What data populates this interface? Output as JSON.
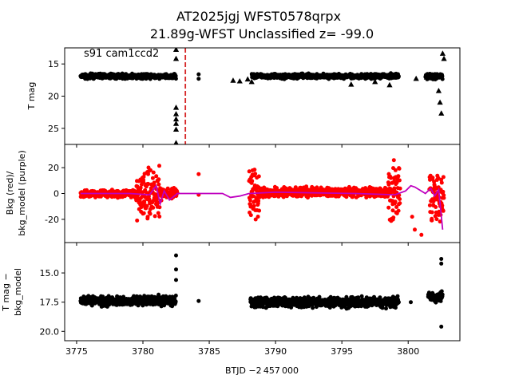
{
  "figure": {
    "title_line1": "AT2025jgj  WFST0578qrpx",
    "title_line2": "21.89g-WFST Unclassified z= -99.0",
    "xlabel": "BTJD −2 457 000"
  },
  "chart_data": [
    {
      "type": "scatter",
      "panel": "top",
      "ylabel": "T mag",
      "annotation": "s91 cam1ccd2",
      "xlim": [
        3774.1,
        3803.9
      ],
      "ylim": [
        27.5,
        12.5
      ],
      "y_inverted": true,
      "xticks": [
        3775,
        3780,
        3785,
        3790,
        3795,
        3800
      ],
      "yticks": [
        15,
        20,
        25
      ],
      "vline": {
        "x": 3783.2,
        "color": "#d62728",
        "style": "dashed"
      },
      "series": [
        {
          "marker": "circle",
          "color": "#000000",
          "segments": [
            {
              "x": [
                3775.3,
                3782.5
              ],
              "y": 16.9,
              "spread": 0.5
            },
            {
              "x": [
                3788.2,
                3799.3
              ],
              "y": 16.9,
              "spread": 0.5
            },
            {
              "x": [
                3801.3,
                3802.6
              ],
              "y": 16.9,
              "spread": 0.6
            }
          ],
          "points": [
            [
              3784.2,
              16.6
            ],
            [
              3784.2,
              17.3
            ]
          ]
        },
        {
          "marker": "triangle",
          "color": "#000000",
          "points": [
            [
              3782.5,
              12.8
            ],
            [
              3782.5,
              14.2
            ],
            [
              3782.5,
              21.8
            ],
            [
              3782.5,
              22.8
            ],
            [
              3782.5,
              23.6
            ],
            [
              3782.5,
              24.3
            ],
            [
              3782.5,
              25.2
            ],
            [
              3782.5,
              27.3
            ],
            [
              3786.8,
              17.6
            ],
            [
              3787.3,
              17.7
            ],
            [
              3787.9,
              17.4
            ],
            [
              3788.2,
              17.8
            ],
            [
              3795.7,
              18.2
            ],
            [
              3797.5,
              17.8
            ],
            [
              3798.6,
              18.3
            ],
            [
              3800.6,
              17.3
            ],
            [
              3801.4,
              17.1
            ],
            [
              3802.3,
              19.2
            ],
            [
              3802.4,
              21.0
            ],
            [
              3802.5,
              22.7
            ],
            [
              3802.6,
              13.4
            ],
            [
              3802.7,
              14.2
            ]
          ]
        }
      ]
    },
    {
      "type": "scatter",
      "panel": "middle",
      "ylabel_line1": "Bkg (red)/",
      "ylabel_line2": "bkg_model (purple)",
      "xlim": [
        3774.1,
        3803.9
      ],
      "ylim": [
        -38,
        38
      ],
      "yticks": [
        -20,
        0,
        20
      ],
      "series": [
        {
          "name": "Bkg",
          "color": "#ff0000",
          "marker": "circle",
          "segments": [
            {
              "x": [
                3775.3,
                3779.5
              ],
              "y": 0,
              "spread": 4
            },
            {
              "x": [
                3779.5,
                3781.3
              ],
              "y": 0,
              "spread": 30
            },
            {
              "x": [
                3781.3,
                3782.6
              ],
              "y": 0,
              "spread": 6
            },
            {
              "x": [
                3788.0,
                3788.8
              ],
              "y": 0,
              "spread": 30
            },
            {
              "x": [
                3788.8,
                3798.5
              ],
              "y": 1,
              "spread": 5
            },
            {
              "x": [
                3798.5,
                3799.4
              ],
              "y": 0,
              "spread": 32
            },
            {
              "x": [
                3801.6,
                3802.7
              ],
              "y": 0,
              "spread": 28
            }
          ],
          "points": [
            [
              3784.2,
              15
            ],
            [
              3784.2,
              -1
            ],
            [
              3800.3,
              -18
            ],
            [
              3800.5,
              -28
            ],
            [
              3801.0,
              -32
            ]
          ]
        },
        {
          "name": "bkg_model",
          "color": "#bf00bf",
          "marker": "line",
          "points": [
            [
              3775.3,
              0
            ],
            [
              3779.0,
              0
            ],
            [
              3780.5,
              -1
            ],
            [
              3781.0,
              6
            ],
            [
              3781.3,
              -8
            ],
            [
              3781.6,
              2
            ],
            [
              3782.0,
              -5
            ],
            [
              3782.6,
              0
            ],
            [
              3786.0,
              0
            ],
            [
              3786.6,
              -3
            ],
            [
              3787.3,
              -2
            ],
            [
              3788.0,
              0
            ],
            [
              3790.0,
              1
            ],
            [
              3796.0,
              0
            ],
            [
              3799.0,
              -1
            ],
            [
              3799.8,
              2
            ],
            [
              3800.2,
              6
            ],
            [
              3800.5,
              5
            ],
            [
              3801.3,
              0
            ],
            [
              3801.7,
              4
            ],
            [
              3802.0,
              -2
            ],
            [
              3802.3,
              3
            ],
            [
              3802.6,
              -28
            ]
          ]
        }
      ]
    },
    {
      "type": "scatter",
      "panel": "bottom",
      "ylabel_line1": "T mag −",
      "ylabel_line2": "bkg_model",
      "xlim": [
        3774.1,
        3803.9
      ],
      "ylim": [
        20.8,
        12.4
      ],
      "y_inverted": true,
      "yticks": [
        15.0,
        17.5,
        20.0
      ],
      "series": [
        {
          "marker": "circle",
          "color": "#000000",
          "segments": [
            {
              "x": [
                3775.3,
                3782.5
              ],
              "y": 17.4,
              "spread": 0.6
            },
            {
              "x": [
                3788.1,
                3799.3
              ],
              "y": 17.5,
              "spread": 0.6
            },
            {
              "x": [
                3801.5,
                3802.6
              ],
              "y": 17.0,
              "spread": 0.6
            }
          ],
          "points": [
            [
              3782.5,
              13.5
            ],
            [
              3782.5,
              14.7
            ],
            [
              3782.5,
              15.6
            ],
            [
              3784.2,
              17.4
            ],
            [
              3800.2,
              17.5
            ],
            [
              3802.5,
              13.8
            ],
            [
              3802.5,
              14.2
            ],
            [
              3802.5,
              19.6
            ]
          ]
        }
      ]
    }
  ]
}
